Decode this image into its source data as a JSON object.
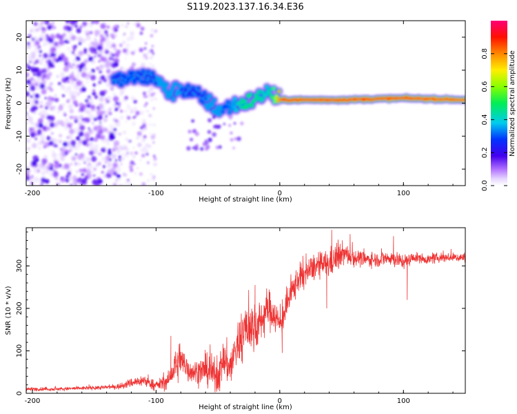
{
  "figure": {
    "title": "S119.2023.137.16.34.E36"
  },
  "chart_data": [
    {
      "type": "heatmap",
      "xlabel": "Height of straight line (km)",
      "ylabel": "Frequency (Hz)",
      "xlim": [
        -205,
        150
      ],
      "ylim": [
        -25,
        25
      ],
      "xticks": [
        -200,
        -100,
        0,
        100
      ],
      "yticks": [
        -20,
        -10,
        0,
        10,
        20
      ],
      "grid": false,
      "colorbar": {
        "label": "Normalized spectral amplitude",
        "range": [
          0,
          1
        ],
        "ticks": [
          0.0,
          0.2,
          0.4,
          0.6,
          0.8
        ],
        "colormap": "rainbow (white-purple-blue-cyan-green-yellow-orange-red-pink)",
        "colors": [
          "#ffffff",
          "#cc99ff",
          "#6600ee",
          "#0000ff",
          "#00ccff",
          "#00ff33",
          "#ffff00",
          "#ff8800",
          "#ff0000",
          "#ff0066"
        ]
      },
      "ridge": {
        "description": "dominant frequency track",
        "height_km": [
          -130,
          -120,
          -110,
          -100,
          -90,
          -80,
          -70,
          -60,
          -50,
          -40,
          -30,
          -20,
          -10,
          0,
          50,
          100,
          150
        ],
        "frequency_hz": [
          7,
          7.5,
          8,
          7.5,
          3,
          4.5,
          3,
          1,
          -2,
          -1,
          0,
          1,
          3.5,
          1,
          1,
          1.5,
          1
        ],
        "amplitude": [
          0.3,
          0.35,
          0.3,
          0.3,
          0.2,
          0.3,
          0.3,
          0.3,
          0.25,
          0.4,
          0.6,
          0.6,
          0.5,
          0.9,
          0.9,
          0.9,
          0.85
        ]
      },
      "scatter_noise": {
        "dense_range_km": [
          -205,
          -130
        ],
        "sparse_range_km": [
          -130,
          -100
        ],
        "frequency_range_hz": [
          -25,
          25
        ],
        "amplitude": [
          0.02,
          0.15
        ]
      }
    },
    {
      "type": "line",
      "xlabel": "Height of straight line (km)",
      "ylabel": "SNR (10 * v/v)",
      "xlim": [
        -205,
        150
      ],
      "ylim": [
        0,
        390
      ],
      "xticks": [
        -200,
        -100,
        0,
        100
      ],
      "yticks": [
        0,
        100,
        200,
        300
      ],
      "grid": false,
      "color": "#ee3333",
      "series": [
        {
          "x": [
            -205,
            -180,
            -160,
            -140,
            -130,
            -120,
            -110,
            -100,
            -90,
            -85,
            -80,
            -75,
            -70,
            -60,
            -50,
            -45,
            -40,
            -35,
            -30,
            -25,
            -20,
            -15,
            -10,
            -5,
            0,
            5,
            10,
            15,
            20,
            30,
            40,
            50,
            60,
            70,
            80,
            90,
            100,
            110,
            120,
            130,
            140,
            150
          ],
          "y": [
            10,
            10,
            12,
            14,
            16,
            25,
            30,
            18,
            30,
            60,
            75,
            60,
            50,
            55,
            40,
            80,
            60,
            110,
            140,
            160,
            150,
            170,
            200,
            190,
            160,
            200,
            240,
            270,
            280,
            300,
            305,
            330,
            320,
            315,
            315,
            320,
            310,
            320,
            315,
            320,
            320,
            320
          ],
          "noise": [
            3,
            3,
            3,
            4,
            5,
            8,
            10,
            8,
            15,
            25,
            30,
            25,
            20,
            25,
            30,
            35,
            35,
            40,
            45,
            45,
            40,
            35,
            35,
            30,
            25,
            25,
            25,
            25,
            25,
            20,
            25,
            20,
            15,
            12,
            12,
            15,
            12,
            8,
            8,
            8,
            8,
            8
          ]
        }
      ],
      "annotations": {
        "spikes": [
          {
            "x": -88,
            "y": 135
          },
          {
            "x": -20,
            "y": 255
          },
          {
            "x": 2,
            "y": 95
          },
          {
            "x": 38,
            "y": 200
          },
          {
            "x": 42,
            "y": 385
          },
          {
            "x": 103,
            "y": 220
          },
          {
            "x": 92,
            "y": 370
          }
        ]
      }
    }
  ]
}
